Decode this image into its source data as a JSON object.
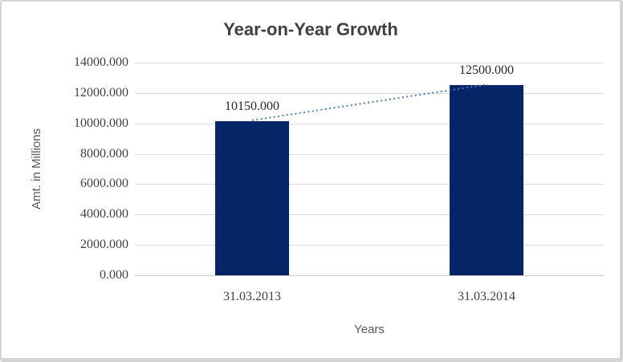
{
  "chart_data": {
    "type": "bar",
    "title": "Year-on-Year Growth",
    "xlabel": "Years",
    "ylabel": "Amt. in Millions",
    "categories": [
      "31.03.2013",
      "31.03.2014"
    ],
    "values": [
      10150,
      12500
    ],
    "value_labels": [
      "10150.000",
      "12500.000"
    ],
    "y_ticks": [
      0,
      2000,
      4000,
      6000,
      8000,
      10000,
      12000,
      14000
    ],
    "y_tick_labels": [
      "0.000",
      "2000.000",
      "4000.000",
      "6000.000",
      "8000.000",
      "10000.000",
      "12000.000",
      "14000.000"
    ],
    "ylim": [
      0,
      14000
    ],
    "grid": true,
    "legend": false,
    "bar_color": "#052567",
    "gridline_color": "#d9d9d9",
    "trendline": {
      "style": "dotted",
      "color": "#4a7ebb",
      "from_value": 10150,
      "to_value": 12500
    }
  }
}
